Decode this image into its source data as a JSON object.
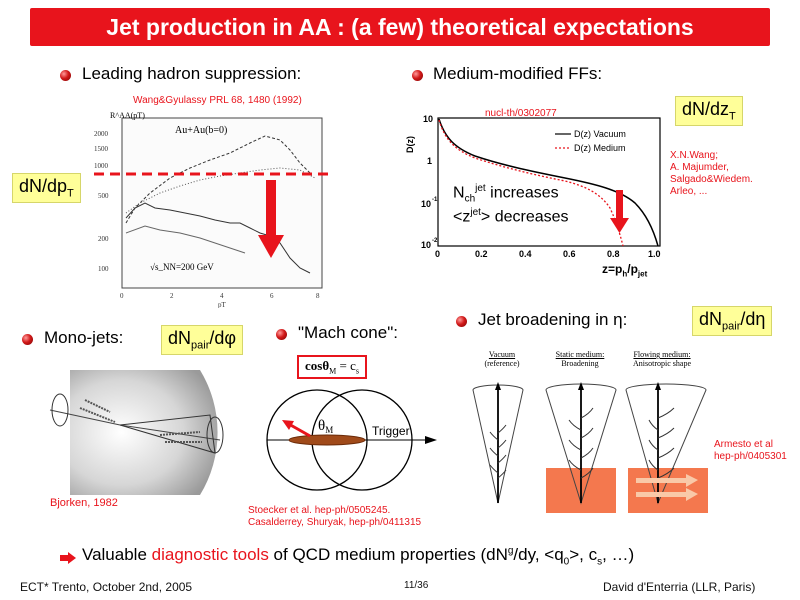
{
  "title": "Jet production in AA : (a few) theoretical expectations",
  "left": {
    "heading": "Leading hadron suppression:",
    "ref": "Wang&Gyulassy PRL 68, 1480 (1992)",
    "box_main": "dN/dp",
    "box_sub": "T",
    "plot_ylabel": "R^AA(pT)",
    "plot_legend": "Au+Au(b=0)",
    "plot_energy": "√s_NN=200 GeV",
    "plot_xlabel": "pT",
    "y_ticks": [
      "2000",
      "1500",
      "1000",
      "500",
      "200",
      "100"
    ],
    "x_ticks": [
      "0",
      "2",
      "4",
      "6",
      "8"
    ]
  },
  "right": {
    "heading": "Medium-modified FFs:",
    "ref": "nucl-th/0302077",
    "box_main": "dN/dz",
    "box_sub": "T",
    "side_refs": [
      "X.N.Wang;",
      "A. Majumder,",
      "Salgado&Wiedem.",
      "Arleo, ..."
    ],
    "legend": [
      "D(z) Vacuum",
      "D(z) Medium"
    ],
    "ylabel": "D(z)",
    "y_ticks": [
      "10",
      "1",
      "10",
      "10"
    ],
    "y_ticks_exp": [
      "",
      "",
      "-1",
      "-2"
    ],
    "x_ticks": [
      "0",
      "0.2",
      "0.4",
      "0.6",
      "0.8",
      "1.0"
    ],
    "xlabel_main": "z=p",
    "xlabel_sub1": "h",
    "xlabel_mid": "/p",
    "xlabel_sub2": "jet",
    "note1_pre": "N",
    "note1_sub": "ch",
    "note1_sup": "jet",
    "note1_post": " increases",
    "note2_pre": "<z",
    "note2_sup": "jet",
    "note2_post": "> decreases"
  },
  "mono": {
    "heading": "Mono-jets:",
    "box_main": "dN",
    "box_sub": "pair",
    "box_post": "/dφ",
    "ref": "Bjorken, 1982"
  },
  "mach": {
    "heading": "\"Mach cone\":",
    "formula": "cosθ",
    "formula_sub": "M",
    "formula_post": " = c",
    "formula_sub2": "s",
    "theta_label": "θ",
    "theta_sub": "M",
    "trigger": "Trigger",
    "refs": [
      "Stoecker et al. hep-ph/0505245.",
      "Casalderrey, Shuryak, hep-ph/0411315"
    ]
  },
  "broad": {
    "heading": "Jet broadening in η:",
    "box_main": "dN",
    "box_sub": "pair",
    "box_post": "/dη",
    "columns": [
      {
        "title": "Vacuum",
        "subtitle": "(reference)"
      },
      {
        "title": "Static medium:",
        "subtitle": "Broadening"
      },
      {
        "title": "Flowing medium:",
        "subtitle": "Anisotropic shape"
      }
    ],
    "ref": [
      "Armesto et al",
      "hep-ph/0405301"
    ]
  },
  "bottom": {
    "pre": "Valuable ",
    "highlight": "diagnostic tools",
    "post": " of QCD medium properties (dN",
    "g": "g",
    "post2": "/dy, <q",
    "q0": "0",
    "post3": ">, c",
    "cs": "s",
    "post4": ", …)"
  },
  "footer": {
    "left": "ECT* Trento, October 2nd, 2005",
    "center": "11/36",
    "right": "David d'Enterria (LLR, Paris)"
  },
  "colors": {
    "accent_red": "#e8141c",
    "yellow_box": "#ffff99"
  }
}
